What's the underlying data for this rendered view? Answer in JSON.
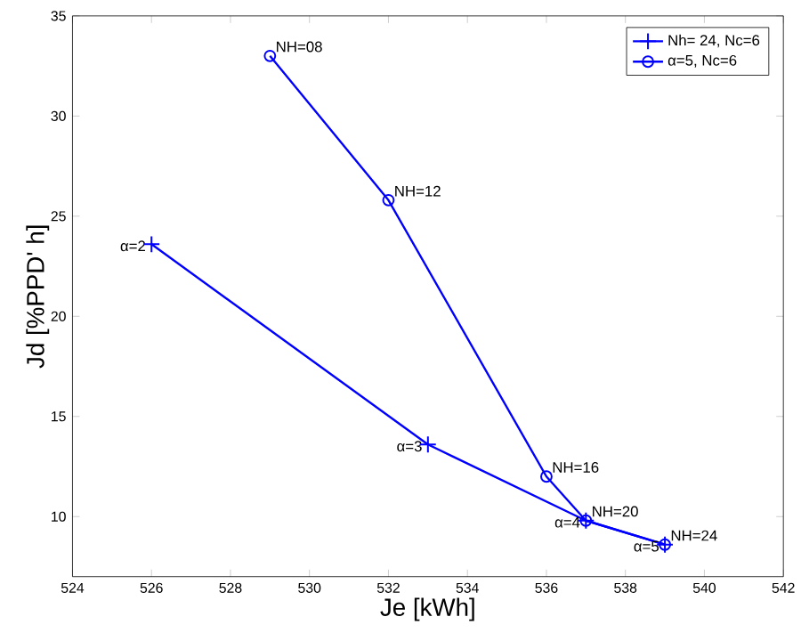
{
  "chart_data": {
    "type": "line",
    "xlabel": "Je [kWh]",
    "ylabel": "Jd [%PPD' h]",
    "xlim": [
      524,
      542
    ],
    "xticks": [
      524,
      526,
      528,
      530,
      532,
      534,
      536,
      538,
      540,
      542
    ],
    "ylim": [
      7,
      35
    ],
    "yticks": [
      10,
      15,
      20,
      25,
      30,
      35
    ],
    "grid": false,
    "legend": "top right",
    "series": [
      {
        "name": "Nh= 24, Nc=6",
        "color": "#0000ff",
        "marker": "cross",
        "x": [
          526,
          533,
          537,
          539
        ],
        "values": [
          23.6,
          13.6,
          9.8,
          8.6
        ]
      },
      {
        "name": "α=5, Nc=6",
        "color": "#0000ff",
        "marker": "circle",
        "x": [
          529,
          532,
          536,
          537,
          539
        ],
        "values": [
          33,
          25.8,
          12,
          9.8,
          8.6
        ]
      }
    ],
    "annotations": [
      {
        "text": "NH=08",
        "x": 529,
        "y": 33
      },
      {
        "text": "NH=12",
        "x": 532,
        "y": 25.8
      },
      {
        "text": "NH=16",
        "x": 536,
        "y": 12
      },
      {
        "text": "NH=20",
        "x": 537,
        "y": 9.8
      },
      {
        "text": "NH=24",
        "x": 539,
        "y": 8.6
      },
      {
        "text": "α=2",
        "x": 526,
        "y": 23.6
      },
      {
        "text": "α=3",
        "x": 533,
        "y": 13.6
      },
      {
        "text": "α=4",
        "x": 537,
        "y": 9.8
      },
      {
        "text": "α=5",
        "x": 539,
        "y": 8.6
      }
    ]
  }
}
